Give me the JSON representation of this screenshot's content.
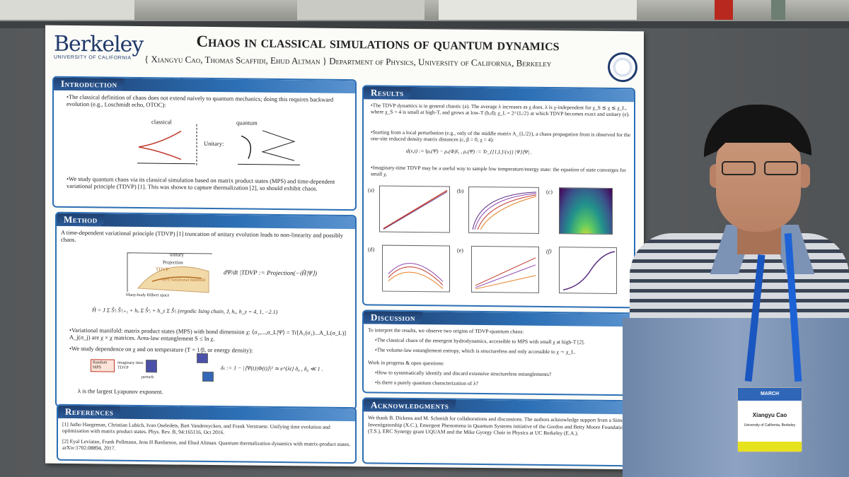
{
  "poster": {
    "logo_main": "Berkeley",
    "logo_sub": "UNIVERSITY OF CALIFORNIA",
    "title": "Chaos in classical simulations of quantum dynamics",
    "authors": "{ Xiangyu Cao, Thomas Scaffidi, Ehud Altman }     Department of Physics, University of California, Berkeley",
    "introduction": {
      "heading": "Introduction",
      "bullet1": "The classical definition of chaos does not extend naively to quantum mechanics; doing this requires backward evolution (e.g., Loschmidt echo, OTOC):",
      "classical": "classical",
      "quantum": "quantum",
      "unitary": "Unitary:",
      "bullet2": "We study quantum chaos via its classical simulation based on matrix product states (MPS) and time-dependent variational principle (TDVP) [1]. This was shown to capture thermalization [2], so should exhibit chaos."
    },
    "method": {
      "heading": "Method",
      "intro": "A time-dependent variational principle (TDVP) [1] truncation of unitary evolution leads to non-linearity and possibly chaos.",
      "fig_unitary": "unitary",
      "fig_projection": "Projection",
      "fig_tdvp": "TDVP",
      "fig_manifold": "MPS variational manifold",
      "fig_space": "Many-body Hilbert space",
      "projection_eq": "dΨ/dt |TDVP := Projection(−iĤ|Ψ⟩)",
      "hamiltonian": "Ĥ = J Σ Ŝᶻᵢ Ŝᶻᵢ₊₁ + hₓ Σ Ŝˣᵢ + h_z Σ Ŝᶻᵢ   (ergodic Ising chain, J, hₓ, h_z = 4, 1, −2.1)",
      "bullet1": "Variational manifold: matrix product states (MPS) with bond dimension χ: ⟨σ₁,...,σ_L|Ψ⟩ = Tr[A₁(σ₁)...A_L(σ_L)] A_j(σ_j) are χ × χ matrices. Area-law entanglement S ≤ ln χ.",
      "bullet2": "We study dependence on χ and on temperature (T = 1/β, or energy density):",
      "flow_random": "Random MPS",
      "flow_imag": "imaginary time TDVP",
      "flow_perturb": "perturb",
      "delta_eq": "δₜ := 1 − |⟨Ψ(t)|Φ(t)⟩|² ≃ e^{λt} δ₀ , δ₀ ≪ 1 .",
      "lyapunov": "λ is the largest Lyapunov exponent."
    },
    "references": {
      "heading": "References",
      "ref1": "[1]  Jutho Haegeman, Christian Lubich, Ivan Oseledets, Bart Vandereycken, and Frank Verstraete. Unifying time evolution and optimization with matrix product states. Phys. Rev. B, 94:165116, Oct 2016.",
      "ref2": "[2]  Eyal Leviatan, Frank Pollmann, Jens H Bardarson, and Ehud Altman. Quantum thermalization dynamics with matrix-product states. arXiv:1702.08894, 2017."
    },
    "results": {
      "heading": "Results",
      "bullet1": "The TDVP dynamics is in general chaotic (a). The average λ increases as χ does. λ is χ-independent for χ_S ≲ χ ≲ χ_L, where χ_S = 4 is small at high-T, and grows at low-T (b,d); χ_L = 2^{L/2} at which TDVP becomes exact and unitary (e).",
      "bullet2": "Starting from a local perturbation (e.g., only of the middle matrix A_{L/2}), a chaos propagation front is observed for the one-site reduced density matrix distances (c, β = 0, χ = 4):",
      "distance_eq": "d(x,t) := ‖ρₓ(Ψ) − ρₓ(Φ)‖₁ , ρₓ(Ψ) := Tr_{[1,L]\\{x}} |Ψ⟩⟨Ψ| .",
      "bullet3": "Imaginary-time TDVP may be a useful way to sample low temperature/energy state: the equation of state converges for small χ.",
      "panels": [
        "(a)",
        "(b)",
        "(c)",
        "(d)",
        "(e)",
        "(f)"
      ]
    },
    "discussion": {
      "heading": "Discussion",
      "intro": "To interpret the results, we observe two origins of TDVP-quantum chaos:",
      "bullet1": "The classical chaos of the emergent hydrodynamics, accessible to MPS with small χ at high-T [2].",
      "bullet2": "The volume-law entanglement entropy, which is structureless and only accessible to χ ∼ χ_L.",
      "wip": "Work in progress & open questions:",
      "bullet3": "How to systematically identify and discard extensive structureless entanglements?",
      "bullet4": "Is there a purely quantum characterization of λ?"
    },
    "acknowledgments": {
      "heading": "Acknowledgments",
      "text": "We thank B. Dickens and M. Schmidt for collaborations and discussions. The authors acknowledge support from a Simons Investigatorship (X.C.), Emergent Phenomena in Quantum Systems initiative of the Gordon and Betty Moore Foundation (T.S.), ERC Synergy grant UQUAM and the Mike Gyorgy Chair in Physics at UC Berkeley (E.A.)."
    }
  },
  "badge": {
    "header": "MARCH",
    "name": "Xiangyu Cao",
    "affiliation": "University of California, Berkeley"
  },
  "colors": {
    "section_blue": "#2c6fb5",
    "header_navy": "#1f3f6f",
    "berkeley_blue": "#203a6b",
    "lanyard": "#1e63d6",
    "badge_yellow": "#e6e21e"
  }
}
